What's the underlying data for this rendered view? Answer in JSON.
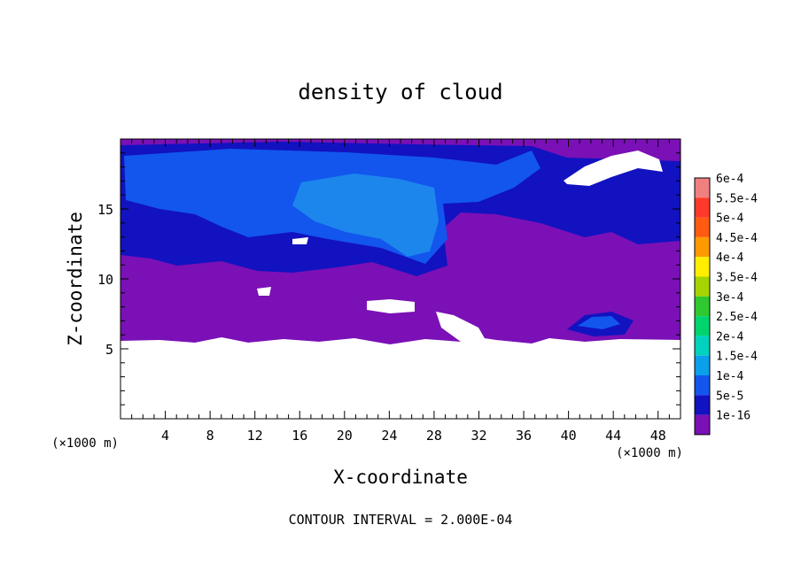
{
  "chart_data": {
    "type": "heatmap",
    "title": "density of cloud",
    "xlabel": "X-coordinate",
    "ylabel": "Z-coordinate",
    "x_unit": "(×1000 m)",
    "z_unit": "(×1000 m)",
    "xlim": [
      0,
      50
    ],
    "ylim": [
      0,
      20
    ],
    "x_ticks": [
      4,
      8,
      12,
      16,
      20,
      24,
      28,
      32,
      36,
      40,
      44,
      48
    ],
    "y_ticks": [
      5,
      10,
      15
    ],
    "footer": "CONTOUR INTERVAL = 2.000E-04",
    "legend": {
      "placement": "right",
      "levels": [
        {
          "label": "6e-4",
          "color": "#f0807f"
        },
        {
          "label": "5.5e-4",
          "color": "#ff3a2a"
        },
        {
          "label": "5e-4",
          "color": "#ff5a12"
        },
        {
          "label": "4.5e-4",
          "color": "#ff9900"
        },
        {
          "label": "4e-4",
          "color": "#ffee00"
        },
        {
          "label": "3.5e-4",
          "color": "#a6d400"
        },
        {
          "label": "3e-4",
          "color": "#2fc82f"
        },
        {
          "label": "2.5e-4",
          "color": "#00d46e"
        },
        {
          "label": "2e-4",
          "color": "#00d2be"
        },
        {
          "label": "1.5e-4",
          "color": "#0aa0ea"
        },
        {
          "label": "1e-4",
          "color": "#1256ee"
        },
        {
          "label": "5e-5",
          "color": "#1212c0"
        },
        {
          "label": "1e-16",
          "color": "#7a10b6"
        }
      ]
    },
    "cloud_layers_km": [
      {
        "level": "1e-16",
        "z_range": [
          5.5,
          20
        ],
        "x_range": [
          0,
          50
        ]
      },
      {
        "level": "5e-5",
        "z_range": [
          10,
          19.5
        ],
        "x_range": [
          0,
          50
        ]
      },
      {
        "level": "1e-4",
        "z_range": [
          11,
          18.5
        ],
        "x_range": [
          0,
          36
        ]
      },
      {
        "level": "1.5e-4",
        "z_range": [
          11,
          16.5
        ],
        "x_range": [
          17,
          31
        ]
      }
    ]
  }
}
